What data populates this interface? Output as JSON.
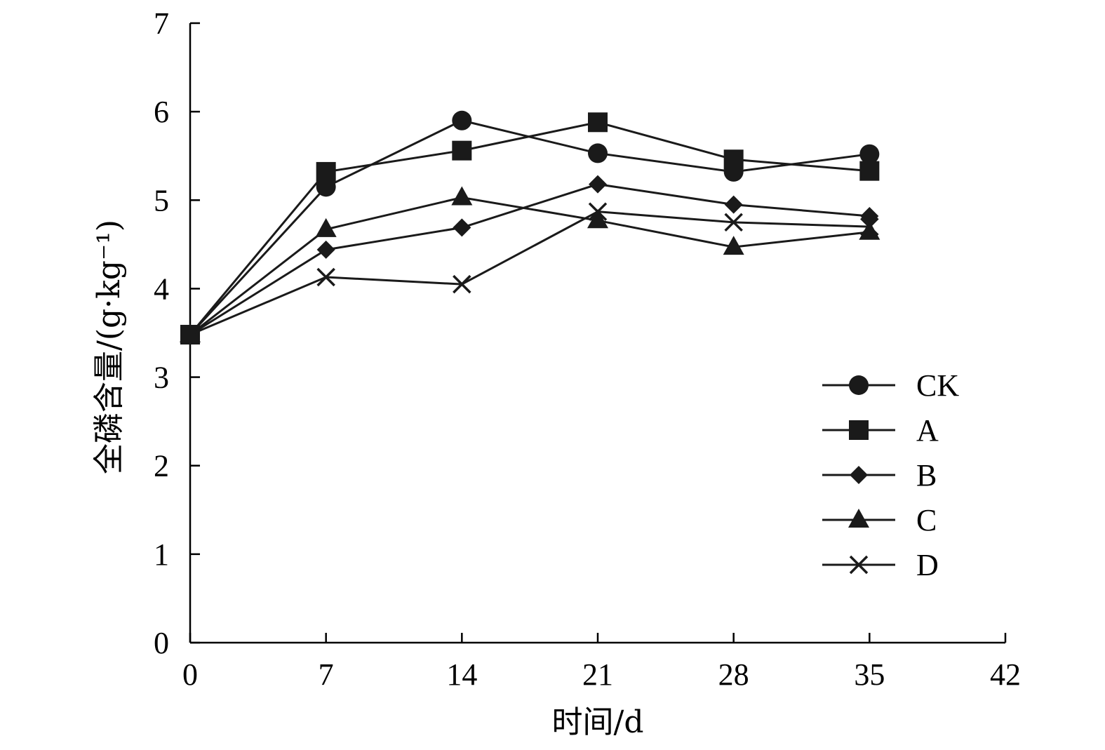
{
  "chart_data": {
    "type": "line",
    "xlabel": "时间/d",
    "ylabel": "全磷含量/(g·kg⁻¹)",
    "xlim": [
      0,
      42
    ],
    "ylim": [
      0,
      7
    ],
    "xticks": [
      0,
      7,
      14,
      21,
      28,
      35,
      42
    ],
    "yticks": [
      0,
      1,
      2,
      3,
      4,
      5,
      6,
      7
    ],
    "grid": false,
    "legend_position": "right",
    "x": [
      0,
      7,
      14,
      21,
      28,
      35
    ],
    "series": [
      {
        "name": "CK",
        "marker": "circle",
        "values": [
          3.48,
          5.15,
          5.9,
          5.53,
          5.32,
          5.52
        ]
      },
      {
        "name": "A",
        "marker": "square",
        "values": [
          3.48,
          5.32,
          5.56,
          5.88,
          5.46,
          5.33
        ]
      },
      {
        "name": "B",
        "marker": "diamond",
        "values": [
          3.48,
          4.44,
          4.69,
          5.18,
          4.95,
          4.82
        ]
      },
      {
        "name": "C",
        "marker": "triangle",
        "values": [
          3.48,
          4.67,
          5.03,
          4.77,
          4.47,
          4.64
        ]
      },
      {
        "name": "D",
        "marker": "x",
        "values": [
          3.48,
          4.13,
          4.05,
          4.87,
          4.75,
          4.7
        ]
      }
    ]
  }
}
